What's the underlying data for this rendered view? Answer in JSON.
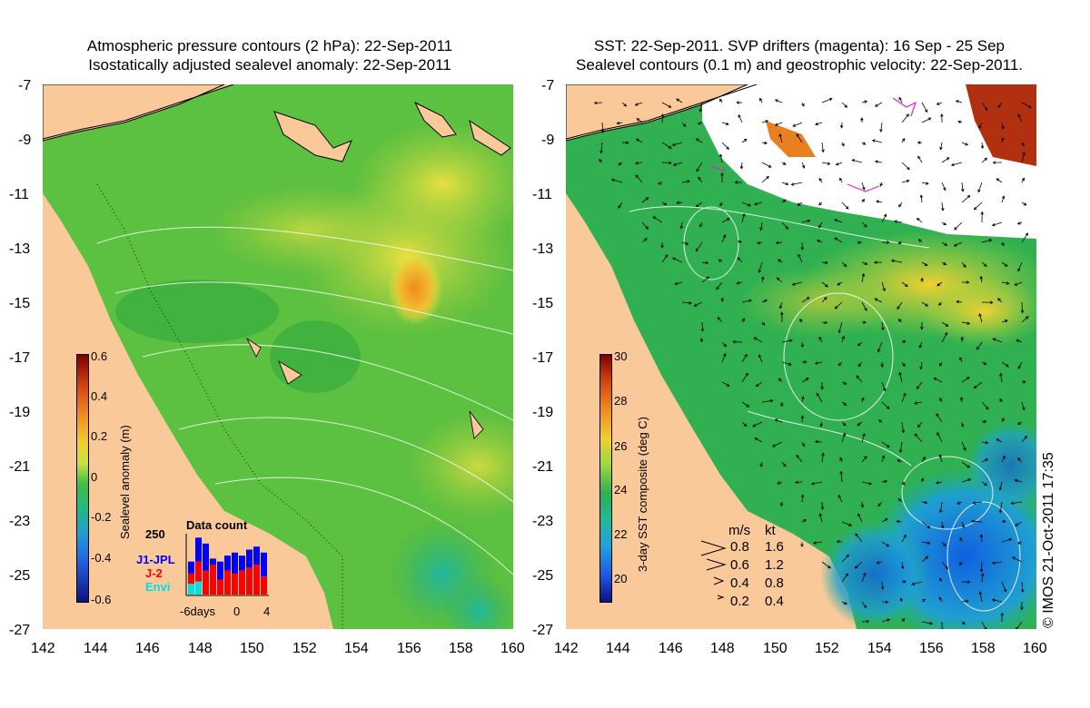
{
  "left_panel": {
    "title_line1": "Atmospheric pressure contours (2 hPa): 22-Sep-2011",
    "title_line2": "Isostatically adjusted sealevel anomaly: 22-Sep-2011",
    "colorbar_title": "Sealevel anomaly (m)",
    "colorbar_ticks": [
      "0.6",
      "0.4",
      "0.2",
      "0",
      "-0.2",
      "-0.4",
      "-0.6"
    ],
    "data_count": {
      "title": "Data count",
      "ymax_label": "250",
      "series": [
        "J1-JPL",
        "J-2",
        "Envi"
      ],
      "series_colors": [
        "#0000ff",
        "#ff0000",
        "#00e0e0"
      ],
      "x_labels": [
        "-6days",
        "0",
        "4"
      ],
      "bars": [
        {
          "j1": 0.55,
          "j2": 0.35,
          "envi": 0.18
        },
        {
          "j1": 0.95,
          "j2": 0.55,
          "envi": 0.22
        },
        {
          "j1": 0.85,
          "j2": 0.4,
          "envi": 0.0
        },
        {
          "j1": 0.6,
          "j2": 0.5,
          "envi": 0.0
        },
        {
          "j1": 0.55,
          "j2": 0.25,
          "envi": 0.0
        },
        {
          "j1": 0.65,
          "j2": 0.4,
          "envi": 0.0
        },
        {
          "j1": 0.7,
          "j2": 0.35,
          "envi": 0.0
        },
        {
          "j1": 0.65,
          "j2": 0.4,
          "envi": 0.0
        },
        {
          "j1": 0.75,
          "j2": 0.45,
          "envi": 0.0
        },
        {
          "j1": 0.8,
          "j2": 0.5,
          "envi": 0.0
        },
        {
          "j1": 0.7,
          "j2": 0.3,
          "envi": 0.0
        }
      ]
    }
  },
  "right_panel": {
    "title_line1": "SST: 22-Sep-2011. SVP drifters (magenta): 16 Sep - 25 Sep",
    "title_line2": "Sealevel contours (0.1 m) and geostrophic velocity: 22-Sep-2011.",
    "colorbar_title": "3-day SST composite (deg C)",
    "colorbar_ticks": [
      "30",
      "28",
      "26",
      "24",
      "22",
      "20"
    ],
    "velocity_legend": {
      "header_ms": "m/s",
      "header_kt": "kt",
      "rows": [
        {
          "ms": "0.8",
          "kt": "1.6"
        },
        {
          "ms": "0.6",
          "kt": "1.2"
        },
        {
          "ms": "0.4",
          "kt": "0.8"
        },
        {
          "ms": "0.2",
          "kt": "0.4"
        }
      ]
    },
    "credit": "© IMOS 21-Oct-2011 17:35"
  },
  "axes": {
    "y_ticks": [
      "-7",
      "-9",
      "-11",
      "-13",
      "-15",
      "-17",
      "-19",
      "-21",
      "-23",
      "-25",
      "-27"
    ],
    "x_ticks": [
      "142",
      "144",
      "146",
      "148",
      "150",
      "152",
      "154",
      "156",
      "158",
      "160"
    ]
  },
  "colors": {
    "land": "#f9c99a",
    "ocean_green": "#3cb43c",
    "sst_green": "#2faa4a",
    "yellow": "#e8e840",
    "orange": "#f0a030",
    "cyan": "#20c0b0",
    "blue": "#2070e0"
  }
}
